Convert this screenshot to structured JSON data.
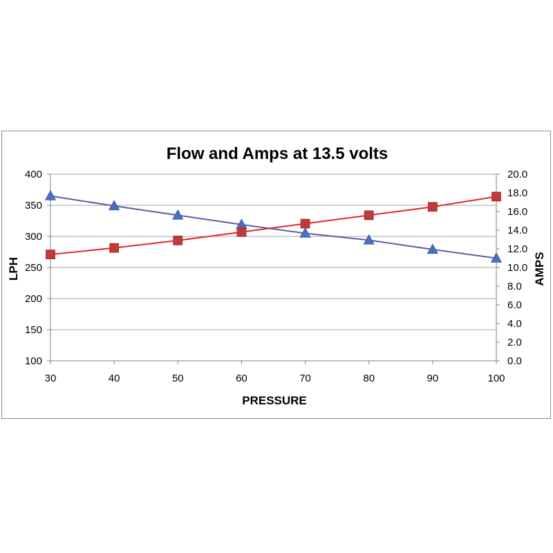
{
  "chart_data": {
    "type": "line",
    "title": "Flow and Amps at 13.5 volts",
    "xlabel": "PRESSURE",
    "ylabel": "LPH",
    "y2label": "AMPS",
    "x": [
      30,
      40,
      50,
      60,
      70,
      80,
      90,
      100
    ],
    "xticks": [
      "30",
      "40",
      "50",
      "60",
      "70",
      "80",
      "90",
      "100"
    ],
    "ylim": [
      100,
      400
    ],
    "yticks": [
      "100",
      "150",
      "200",
      "250",
      "300",
      "350",
      "400"
    ],
    "y2lim": [
      0,
      20
    ],
    "y2ticks": [
      "0.0",
      "2.0",
      "4.0",
      "6.0",
      "8.0",
      "10.0",
      "12.0",
      "14.0",
      "16.0",
      "18.0",
      "20.0"
    ],
    "grid": true,
    "series": [
      {
        "axis": "left",
        "marker": "triangle",
        "color": "#4a6fc0",
        "line_color": "#5b5ea6",
        "values": [
          365,
          349,
          334,
          319,
          305,
          294,
          279,
          265
        ]
      },
      {
        "axis": "right",
        "marker": "square",
        "color": "#c0393b",
        "line_color": "#e3242b",
        "values": [
          11.4,
          12.1,
          12.9,
          13.8,
          14.7,
          15.6,
          16.5,
          17.6
        ]
      }
    ]
  }
}
